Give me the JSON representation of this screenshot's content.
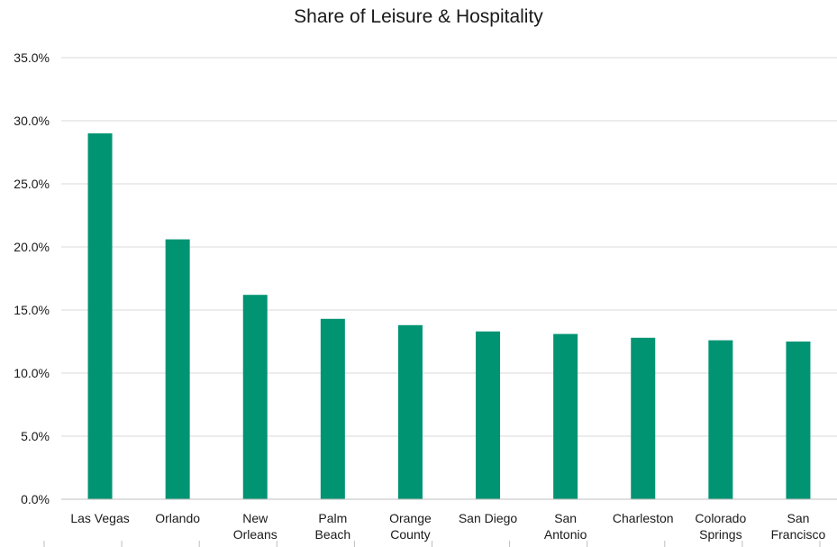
{
  "chart_data": {
    "type": "bar",
    "title": "Share of Leisure & Hospitality",
    "xlabel": "",
    "ylabel": "",
    "categories": [
      [
        "Las Vegas"
      ],
      [
        "Orlando"
      ],
      [
        "New",
        "Orleans"
      ],
      [
        "Palm",
        "Beach"
      ],
      [
        "Orange",
        "County"
      ],
      [
        "San Diego"
      ],
      [
        "San",
        "Antonio"
      ],
      [
        "Charleston"
      ],
      [
        "Colorado",
        "Springs"
      ],
      [
        "San",
        "Francisco"
      ]
    ],
    "values": [
      29.0,
      20.6,
      16.2,
      14.3,
      13.8,
      13.3,
      13.1,
      12.8,
      12.6,
      12.5
    ],
    "ylim": [
      0,
      35
    ],
    "yticks": [
      0,
      5,
      10,
      15,
      20,
      25,
      30,
      35
    ],
    "ytick_labels": [
      "0.0%",
      "5.0%",
      "10.0%",
      "15.0%",
      "20.0%",
      "25.0%",
      "30.0%",
      "35.0%"
    ],
    "grid": true,
    "legend": "none",
    "colors": {
      "bar": "#009473",
      "grid": "#d9d9d9",
      "axis": "#bfbfbf"
    }
  }
}
